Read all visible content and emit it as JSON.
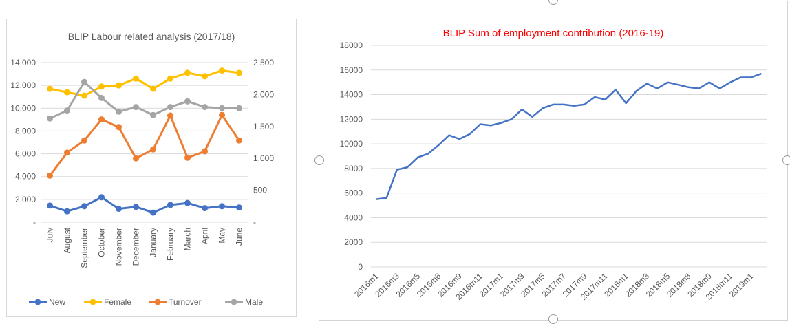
{
  "chart_data": [
    {
      "type": "line",
      "title": "BLIP Labour related analysis (2017/18)",
      "categories": [
        "July",
        "August",
        "September",
        "October",
        "November",
        "December",
        "January",
        "February",
        "March",
        "April",
        "May",
        "June"
      ],
      "y_left": {
        "ylim": [
          0,
          14000
        ],
        "ticks": [
          0,
          2000,
          4000,
          6000,
          8000,
          10000,
          12000,
          14000
        ],
        "tick_labels": [
          "-",
          "2,000",
          "4,000",
          "6,000",
          "8,000",
          "10,000",
          "12,000",
          "14,000"
        ]
      },
      "y_right": {
        "ylim": [
          0,
          2500
        ],
        "ticks": [
          0,
          500,
          1000,
          1500,
          2000,
          2500
        ],
        "tick_labels": [
          "-",
          "500",
          "1,000",
          "1,500",
          "2,000",
          "2,500"
        ]
      },
      "series": [
        {
          "name": "New",
          "axis": "right",
          "color": "#4472c4",
          "values": [
            260,
            170,
            250,
            390,
            210,
            240,
            150,
            270,
            300,
            220,
            250,
            230
          ]
        },
        {
          "name": "Female",
          "axis": "left",
          "color": "#ffc000",
          "values": [
            11700,
            11400,
            11100,
            11900,
            12000,
            12600,
            11700,
            12600,
            13100,
            12800,
            13300,
            13100
          ]
        },
        {
          "name": "Turnover",
          "axis": "right",
          "color": "#ed7d31",
          "values": [
            730,
            1090,
            1280,
            1610,
            1490,
            1000,
            1140,
            1670,
            1010,
            1110,
            1680,
            1280
          ]
        },
        {
          "name": "Male",
          "axis": "left",
          "color": "#a5a5a5",
          "values": [
            9100,
            9800,
            12300,
            10900,
            9700,
            10100,
            9400,
            10100,
            10600,
            10100,
            10000,
            10000
          ]
        }
      ],
      "legend": "bottom",
      "grid": true
    },
    {
      "type": "line",
      "title": "BLIP Sum of employment contribution (2016-19)",
      "title_color": "#ff0000",
      "x_labels": [
        "2016m1",
        "2016m3",
        "2016m5",
        "2016m6",
        "2016m9",
        "2016m11",
        "2017m1",
        "2017m3",
        "2017m5",
        "2017m7",
        "2017m9",
        "2017m11",
        "2018m1",
        "2018m3",
        "2018m5",
        "2018m8",
        "2018m9",
        "2018m11",
        "2019m1"
      ],
      "ylim": [
        0,
        18000
      ],
      "y_ticks": [
        0,
        2000,
        4000,
        6000,
        8000,
        10000,
        12000,
        14000,
        16000,
        18000
      ],
      "series": [
        {
          "color": "#4472c4",
          "values": [
            5500,
            5600,
            7900,
            8100,
            8900,
            9200,
            9900,
            10700,
            10400,
            10800,
            11600,
            11500,
            11700,
            12000,
            12800,
            12200,
            12900,
            13200,
            13200,
            13100,
            13200,
            13800,
            13600,
            14400,
            13300,
            14300,
            14900,
            14500,
            15000,
            14800,
            14600,
            14500,
            15000,
            14500,
            15000,
            15400,
            15400,
            15700
          ]
        }
      ],
      "grid": true
    }
  ]
}
